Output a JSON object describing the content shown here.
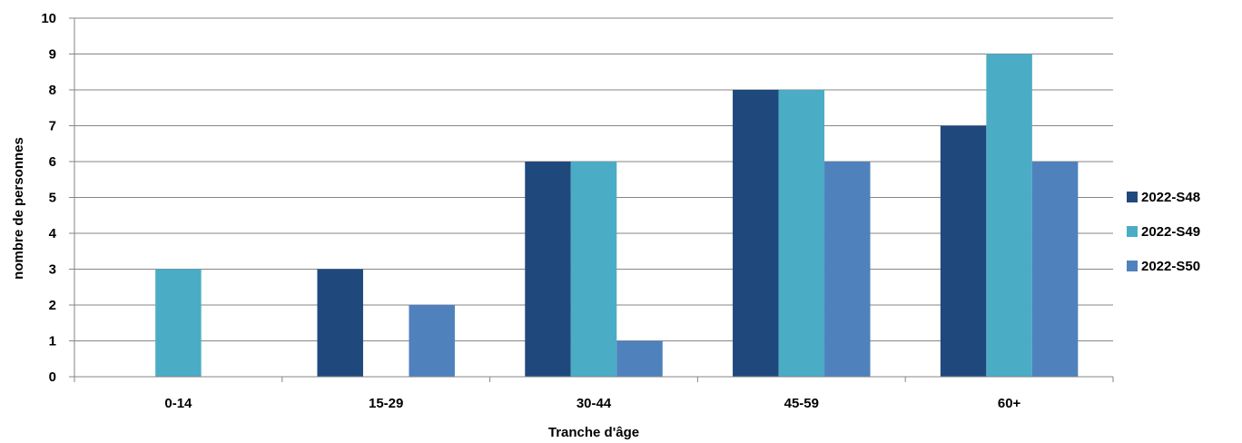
{
  "chart_data": {
    "type": "bar",
    "title": "",
    "xlabel": "Tranche d'âge",
    "ylabel": "nombre de personnes",
    "categories": [
      "0-14",
      "15-29",
      "30-44",
      "45-59",
      "60+"
    ],
    "series": [
      {
        "name": "2022-S48",
        "color": "#1F497D",
        "values": [
          0,
          3,
          6,
          8,
          7
        ]
      },
      {
        "name": "2022-S49",
        "color": "#4BACC6",
        "values": [
          3,
          0,
          6,
          8,
          9
        ]
      },
      {
        "name": "2022-S50",
        "color": "#4F81BD",
        "values": [
          0,
          2,
          1,
          6,
          6
        ]
      }
    ],
    "ylim": [
      0,
      10
    ],
    "yticks": [
      "0",
      "1",
      "2",
      "3",
      "4",
      "5",
      "6",
      "7",
      "8",
      "9",
      "10"
    ],
    "grid": true,
    "legend_position": "right"
  }
}
